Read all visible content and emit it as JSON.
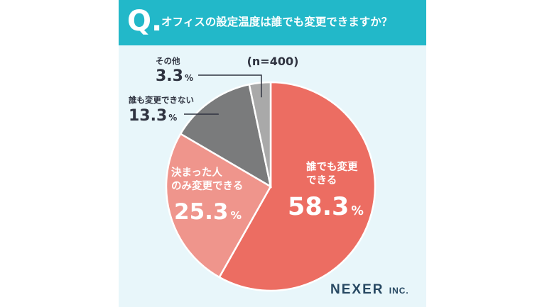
{
  "header": {
    "q_letter": "Q.",
    "question": "オフィスの設定温度は誰でも変更できますか？"
  },
  "brand": {
    "name": "NEXER",
    "suffix": "INC."
  },
  "colors": {
    "header_bg": "#22b8c9",
    "card_bg": "#e8f6fa",
    "text_dark": "#2f3340",
    "brand": "#274862"
  },
  "chart_data": {
    "type": "pie",
    "title": "オフィスの設定温度は誰でも変更できますか？",
    "sample_note": "(n=400)",
    "slices": [
      {
        "label_lines": [
          "誰でも変更",
          "できる"
        ],
        "value": 58.3,
        "value_text": "58.3",
        "unit": "%",
        "color": "#ec6d62",
        "label_style": "inside"
      },
      {
        "label_lines": [
          "決まった人",
          "のみ変更できる"
        ],
        "value": 25.3,
        "value_text": "25.3",
        "unit": "%",
        "color": "#ef958c",
        "label_style": "inside"
      },
      {
        "label_lines": [
          "誰も変更できない"
        ],
        "value": 13.3,
        "value_text": "13.3",
        "unit": "%",
        "color": "#7a7b7c",
        "label_style": "callout"
      },
      {
        "label_lines": [
          "その他"
        ],
        "value": 3.3,
        "value_text": "3.3",
        "unit": "%",
        "color": "#a9a9a9",
        "label_style": "callout"
      }
    ],
    "start_angle_deg": 0,
    "direction": "clockwise"
  }
}
